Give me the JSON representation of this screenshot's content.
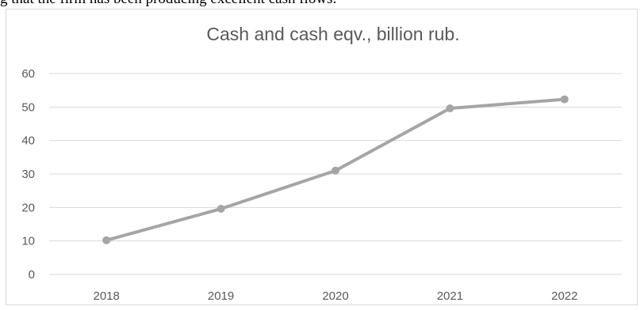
{
  "document": {
    "caption_fragment": "g that the firm has been producing excellent cash flows."
  },
  "chart_data": {
    "type": "line",
    "title": "Cash and cash eqv., billion rub.",
    "xlabel": "",
    "ylabel": "",
    "categories": [
      "2018",
      "2019",
      "2020",
      "2021",
      "2022"
    ],
    "series": [
      {
        "values": [
          10.2,
          19.6,
          31.0,
          49.6,
          52.3
        ],
        "color": "#a5a5a5",
        "marker": "circle"
      }
    ],
    "ylim": [
      0,
      60
    ],
    "yticks": [
      "0",
      "10",
      "20",
      "30",
      "40",
      "50",
      "60"
    ],
    "grid": "horizontal",
    "gridColor": "#d9d9d9",
    "legend": "none"
  }
}
